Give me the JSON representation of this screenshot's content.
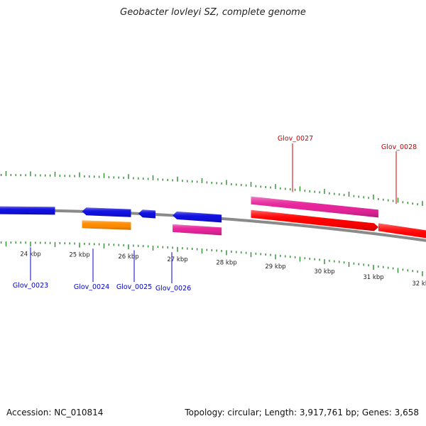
{
  "title": "Geobacter lovleyi SZ, complete genome",
  "footer": {
    "accession": "Accession: NC_010814",
    "summary": "Topology: circular; Length: 3,917,761 bp; Genes: 3,658"
  },
  "colors": {
    "backbone": "#8a8a8a",
    "tick": "#2e8b2e",
    "forward_label": "#cc0000",
    "reverse_label": "#0000cc",
    "blue_gene": "#1010e0",
    "orange_gene": "#ff8c00",
    "pink_gene": "#e6259a",
    "red_gene": "#ff0000"
  },
  "scale": {
    "unit": "kbp",
    "labels": [
      {
        "kbp": 24,
        "text": "24 kbp"
      },
      {
        "kbp": 25,
        "text": "25 kbp"
      },
      {
        "kbp": 26,
        "text": "26 kbp"
      },
      {
        "kbp": 27,
        "text": "27 kbp"
      },
      {
        "kbp": 28,
        "text": "28 kbp"
      },
      {
        "kbp": 29,
        "text": "29 kbp"
      },
      {
        "kbp": 30,
        "text": "30 kbp"
      },
      {
        "kbp": 31,
        "text": "31 kbp"
      },
      {
        "kbp": 32,
        "text": "32 kbp"
      }
    ]
  },
  "genes": [
    {
      "id": "Glov_0023",
      "strand": "-",
      "color": "blue",
      "start_kbp": 23.2,
      "end_kbp": 24.5,
      "labeled": true
    },
    {
      "id": "Glov_0024",
      "strand": "-",
      "color": "blue",
      "start_kbp": 25.05,
      "end_kbp": 26.05,
      "labeled": true
    },
    {
      "id": "Glov_0024",
      "strand": "-",
      "color": "orange",
      "start_kbp": 25.05,
      "end_kbp": 26.05,
      "labeled": false
    },
    {
      "id": "Glov_0025",
      "strand": "-",
      "color": "blue",
      "start_kbp": 26.2,
      "end_kbp": 26.55,
      "labeled": true
    },
    {
      "id": "Glov_0026",
      "strand": "-",
      "color": "blue",
      "start_kbp": 26.9,
      "end_kbp": 27.9,
      "labeled": true
    },
    {
      "id": "Glov_0026",
      "strand": "-",
      "color": "pink",
      "start_kbp": 26.9,
      "end_kbp": 27.9,
      "labeled": false
    },
    {
      "id": "Glov_0027",
      "strand": "+",
      "color": "pink",
      "start_kbp": 28.5,
      "end_kbp": 31.1,
      "labeled": true
    },
    {
      "id": "Glov_0027",
      "strand": "+",
      "color": "red",
      "start_kbp": 28.5,
      "end_kbp": 31.1,
      "labeled": false
    },
    {
      "id": "Glov_0028",
      "strand": "+",
      "color": "red",
      "start_kbp": 31.1,
      "end_kbp": 33.5,
      "labeled": true
    }
  ]
}
